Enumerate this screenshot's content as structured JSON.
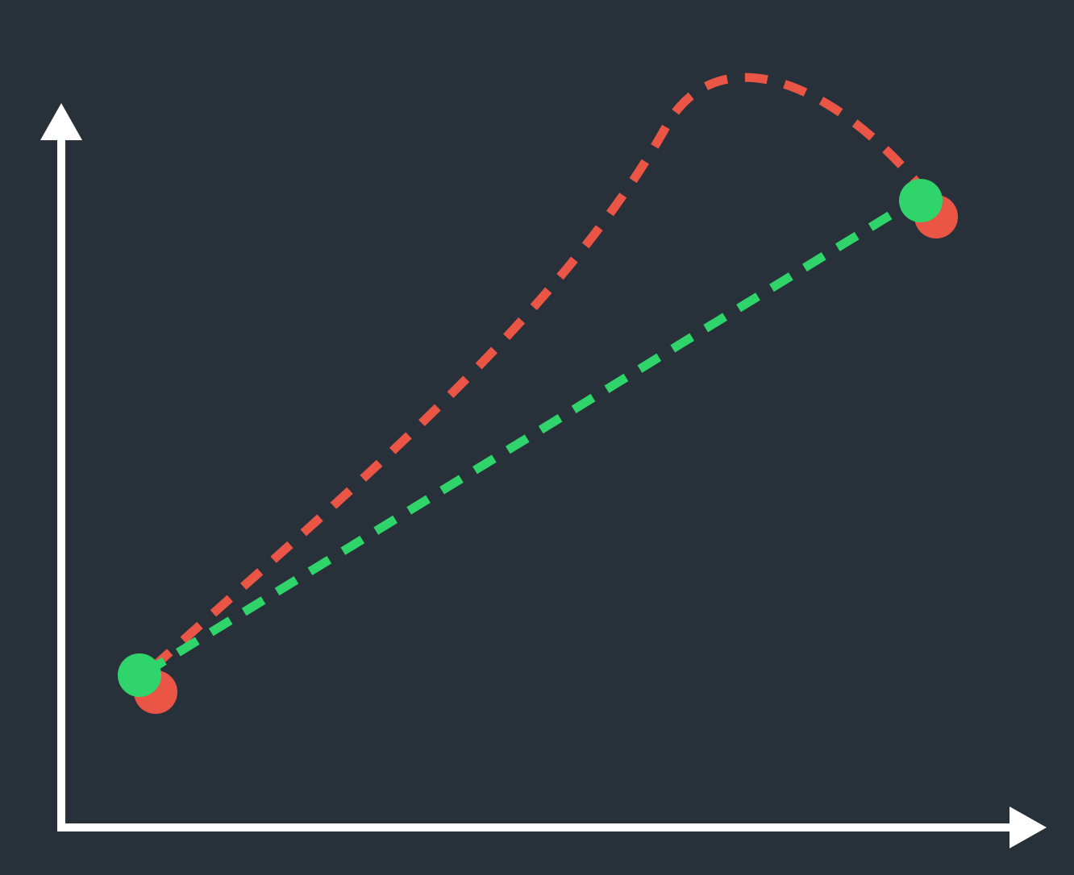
{
  "colors": {
    "background": "#28313a",
    "axis": "#ffffff",
    "path_red": "#ea5545",
    "path_green": "#2fd56b"
  },
  "paths": [
    {
      "id": "curved-path",
      "color_key": "path_red",
      "style": "dashed",
      "shape": "curve"
    },
    {
      "id": "straight-path",
      "color_key": "path_green",
      "style": "dashed",
      "shape": "straight"
    }
  ],
  "points": [
    {
      "id": "start",
      "colors": [
        "path_red",
        "path_green"
      ]
    },
    {
      "id": "end",
      "colors": [
        "path_red",
        "path_green"
      ]
    }
  ]
}
